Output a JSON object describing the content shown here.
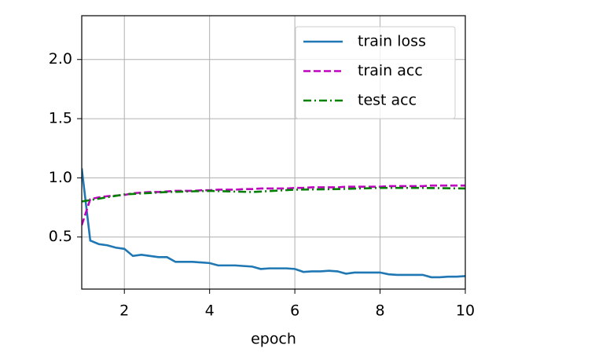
{
  "chart_data": {
    "type": "line",
    "xlabel": "epoch",
    "xlim": [
      1,
      10
    ],
    "ylim": [
      0.06,
      2.37
    ],
    "xticks": [
      2,
      4,
      6,
      8,
      10
    ],
    "yticks": [
      0.5,
      {
        "value": 1,
        "label": "1.0"
      },
      1.5,
      {
        "value": 2,
        "label": "2.0"
      }
    ],
    "grid": true,
    "legend": "upper right",
    "series": [
      {
        "name": "train loss",
        "color": "#1f77b4",
        "dash": "solid",
        "x": [
          1,
          1.2,
          1.4,
          1.6,
          1.8,
          2,
          2.2,
          2.4,
          2.6,
          2.8,
          3,
          3.2,
          3.4,
          3.6,
          3.8,
          4,
          4.2,
          4.4,
          4.6,
          4.8,
          5,
          5.2,
          5.4,
          5.6,
          5.8,
          6,
          6.2,
          6.4,
          6.6,
          6.8,
          7,
          7.2,
          7.4,
          7.6,
          7.8,
          8,
          8.2,
          8.4,
          8.6,
          8.8,
          9,
          9.2,
          9.4,
          9.6,
          9.8,
          10
        ],
        "values": [
          1.08,
          0.47,
          0.44,
          0.43,
          0.41,
          0.4,
          0.34,
          0.35,
          0.34,
          0.33,
          0.33,
          0.29,
          0.29,
          0.29,
          0.285,
          0.28,
          0.26,
          0.26,
          0.26,
          0.255,
          0.25,
          0.23,
          0.235,
          0.235,
          0.235,
          0.23,
          0.205,
          0.21,
          0.21,
          0.215,
          0.21,
          0.19,
          0.2,
          0.2,
          0.2,
          0.2,
          0.185,
          0.18,
          0.18,
          0.18,
          0.18,
          0.16,
          0.16,
          0.165,
          0.165,
          0.17
        ]
      },
      {
        "name": "train acc",
        "color": "#bf00bf",
        "dash": "dashed",
        "x": [
          1,
          1.2,
          1.4,
          1.6,
          1.8,
          2,
          2.2,
          2.4,
          2.6,
          2.8,
          3,
          3.2,
          3.4,
          3.6,
          3.8,
          4,
          4.2,
          4.4,
          4.6,
          4.8,
          5,
          5.2,
          5.4,
          5.6,
          5.8,
          6,
          6.2,
          6.4,
          6.6,
          6.8,
          7,
          7.2,
          7.4,
          7.6,
          7.8,
          8,
          8.2,
          8.4,
          8.6,
          8.8,
          9,
          9.2,
          9.4,
          9.6,
          9.8,
          10
        ],
        "values": [
          0.6,
          0.82,
          0.835,
          0.845,
          0.85,
          0.855,
          0.87,
          0.875,
          0.88,
          0.88,
          0.885,
          0.89,
          0.89,
          0.89,
          0.895,
          0.895,
          0.9,
          0.9,
          0.9,
          0.905,
          0.905,
          0.91,
          0.91,
          0.91,
          0.91,
          0.915,
          0.915,
          0.92,
          0.92,
          0.92,
          0.92,
          0.925,
          0.925,
          0.925,
          0.925,
          0.925,
          0.93,
          0.93,
          0.93,
          0.93,
          0.93,
          0.935,
          0.935,
          0.935,
          0.935,
          0.935
        ]
      },
      {
        "name": "test acc",
        "color": "#008000",
        "dash": "dashdot",
        "x": [
          1,
          2,
          3,
          4,
          5,
          6,
          7,
          8,
          9,
          10
        ],
        "values": [
          0.8,
          0.86,
          0.88,
          0.89,
          0.88,
          0.9,
          0.905,
          0.915,
          0.915,
          0.91
        ]
      }
    ]
  }
}
